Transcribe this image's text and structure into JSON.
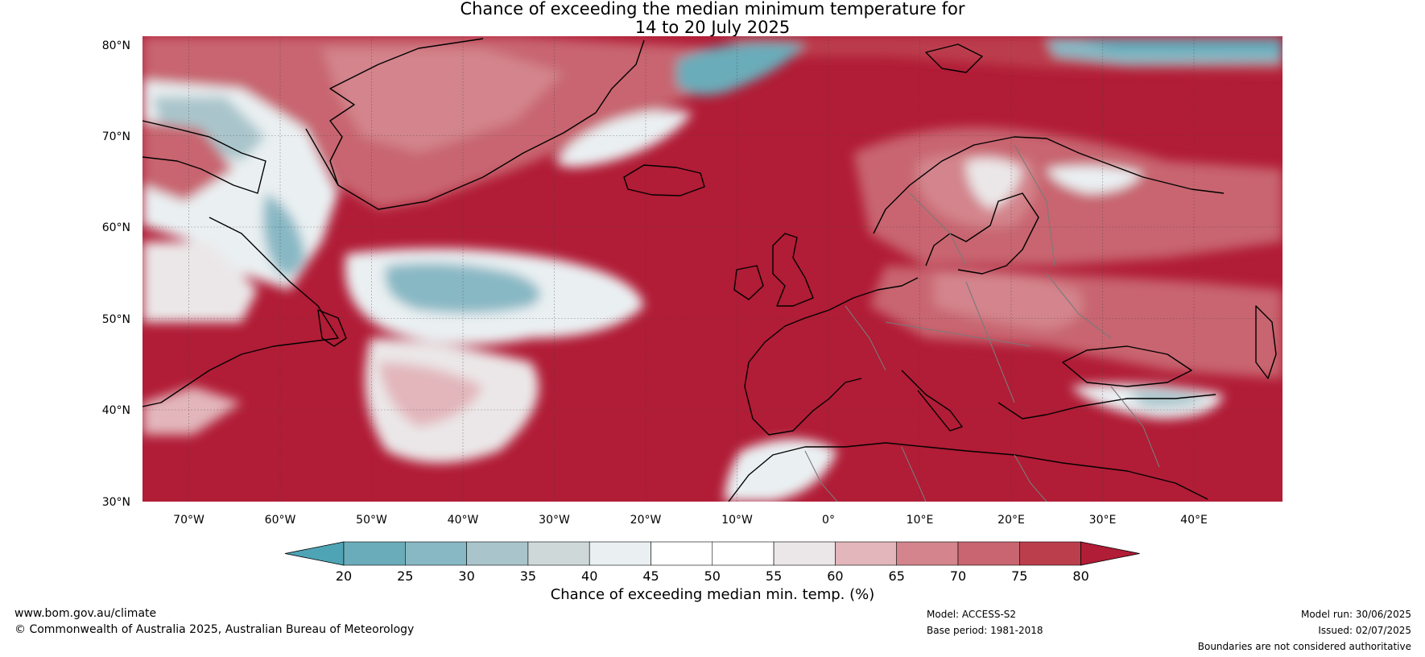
{
  "title": {
    "line1": "Chance of exceeding the median minimum temperature for",
    "line2": "14 to 20 July 2025"
  },
  "map": {
    "latitude_labels": [
      "80°N",
      "70°N",
      "60°N",
      "50°N",
      "40°N",
      "30°N"
    ],
    "longitude_labels": [
      "70°W",
      "60°W",
      "50°W",
      "40°W",
      "30°W",
      "20°W",
      "10°W",
      "0°",
      "10°E",
      "20°E",
      "30°E",
      "40°E"
    ]
  },
  "colorbar": {
    "ticks": [
      "20",
      "25",
      "30",
      "35",
      "40",
      "45",
      "50",
      "55",
      "60",
      "65",
      "70",
      "75",
      "80"
    ],
    "colors": [
      "#4ea4b5",
      "#6aacb9",
      "#88b8c4",
      "#a9c5cb",
      "#cfd8d9",
      "#eaf0f2",
      "#ffffff",
      "#ffffff",
      "#ebe7e8",
      "#e2b6bb",
      "#d3848c",
      "#c86570",
      "#bb3e4d",
      "#b11c36"
    ],
    "title": "Chance of exceeding median min. temp. (%)"
  },
  "footer": {
    "website": "www.bom.gov.au/climate",
    "copyright": "© Commonwealth of Australia 2025, Australian Bureau of Meteorology",
    "model": "Model: ACCESS-S2",
    "base_period": "Base period: 1981-2018",
    "model_run": "Model run: 30/06/2025",
    "issued": "Issued: 02/07/2025",
    "disclaimer": "Boundaries are not considered authoritative"
  }
}
